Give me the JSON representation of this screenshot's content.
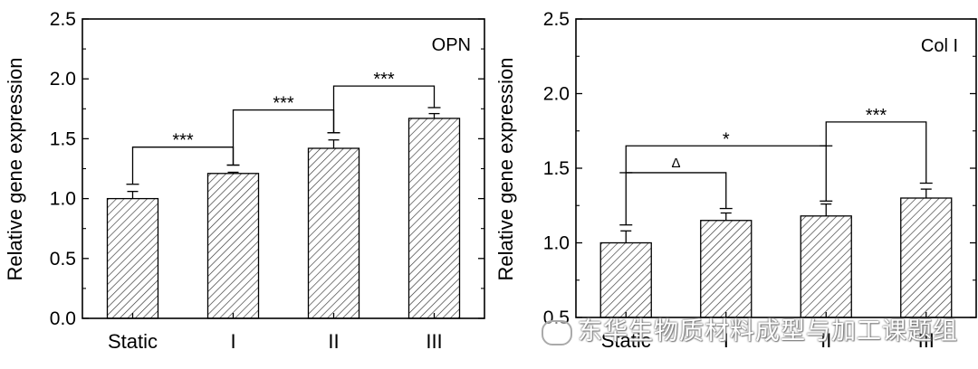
{
  "chart_data": [
    {
      "type": "bar",
      "label": "OPN",
      "ylabel": "Relative gene expression",
      "ylim": [
        0,
        2.5
      ],
      "yticks": [
        "0.0",
        "0.5",
        "1.0",
        "1.5",
        "2.0",
        "2.5"
      ],
      "categories": [
        "Static",
        "I",
        "II",
        "III"
      ],
      "values": [
        1.0,
        1.21,
        1.42,
        1.67
      ],
      "errors": [
        0.06,
        0.01,
        0.07,
        0.04
      ],
      "brackets": [
        {
          "from": 0,
          "to": 1,
          "label": "***",
          "left_y": 1.12,
          "right_y": 1.28,
          "top_y": 1.43
        },
        {
          "from": 1,
          "to": 2,
          "label": "***",
          "left_y": 1.28,
          "right_y": 1.55,
          "top_y": 1.74
        },
        {
          "from": 2,
          "to": 3,
          "label": "***",
          "left_y": 1.55,
          "right_y": 1.76,
          "top_y": 1.94
        }
      ]
    },
    {
      "type": "bar",
      "label": "Col I",
      "ylabel": "Relative gene expression",
      "ylim": [
        0.5,
        2.5
      ],
      "yticks": [
        "0.5",
        "1.0",
        "1.5",
        "2.0",
        "2.5"
      ],
      "categories": [
        "Static",
        "I",
        "II",
        "III"
      ],
      "values": [
        1.0,
        1.15,
        1.18,
        1.3
      ],
      "errors": [
        0.08,
        0.05,
        0.08,
        0.06
      ],
      "brackets": [
        {
          "from": 0,
          "to": 1,
          "label": "Δ",
          "left_y": 1.12,
          "right_y": 1.23,
          "top_y": 1.47
        },
        {
          "from": 0,
          "to": 2,
          "label": "*",
          "left_y": 1.47,
          "right_y": 1.28,
          "top_y": 1.65
        },
        {
          "from": 2,
          "to": 3,
          "label": "***",
          "left_y": 1.65,
          "right_y": 1.4,
          "top_y": 1.81
        }
      ]
    }
  ],
  "watermark": "东华生物质材料成型与加工课题组"
}
